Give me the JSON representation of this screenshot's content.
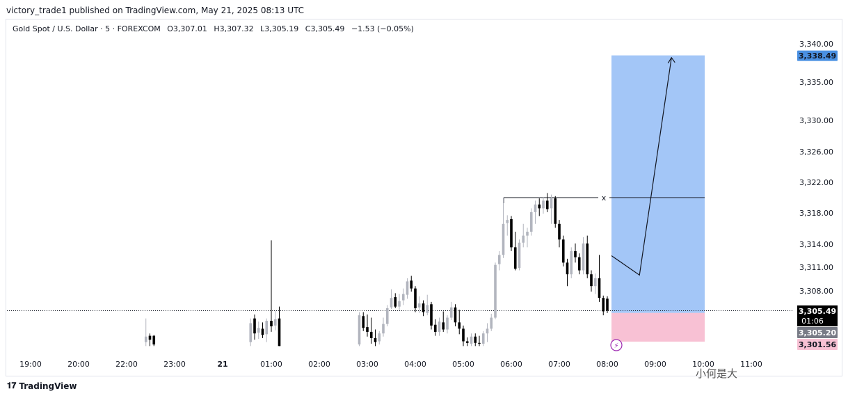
{
  "header": {
    "published_line": "victory_trade1 published on TradingView.com, May 21, 2025 08:13 UTC"
  },
  "legend": {
    "symbol": "Gold Spot / U.S. Dollar · 5 · FOREXCOM",
    "open": "O3,307.01",
    "high": "H3,307.32",
    "low": "L3,305.19",
    "close": "C3,305.49",
    "change": "−1.53 (−0.05%)"
  },
  "footer": {
    "brand": "TradingView",
    "watermark": "小何是大"
  },
  "colors": {
    "up": "#b2b5be",
    "down": "#000000",
    "target_zone": "#a3c6f7",
    "stop_zone": "#f8c1d4",
    "target_label": "#4a90e2",
    "stop_label": "#f8c1d4",
    "current_label": "#000000",
    "entry_label": "#787b86"
  },
  "chart_data": {
    "type": "candlestick",
    "title": "Gold Spot / U.S. Dollar · 5 · FOREXCOM",
    "y_ticks": [
      3308.0,
      3311.0,
      3314.0,
      3318.0,
      3322.0,
      3326.0,
      3330.0,
      3335.0,
      3340.0
    ],
    "y_tick_labels": [
      "3,308.00",
      "3,311.00",
      "3,314.00",
      "3,318.00",
      "3,322.00",
      "3,326.00",
      "3,330.00",
      "3,335.00",
      "3,340.00"
    ],
    "x_ticks": [
      "19:00",
      "20:00",
      "22:00",
      "23:00",
      "21",
      "01:00",
      "02:00",
      "03:00",
      "04:00",
      "05:00",
      "06:00",
      "07:00",
      "08:00",
      "09:00",
      "10:00",
      "11:00"
    ],
    "candles": [
      {
        "t": "22:25",
        "o": 3301.5,
        "h": 3304.5,
        "l": 3301.0,
        "c": 3302.2
      },
      {
        "t": "22:30",
        "o": 3302.3,
        "h": 3302.6,
        "l": 3301.0,
        "c": 3301.8
      },
      {
        "t": "22:35",
        "o": 3302.3,
        "h": 3302.4,
        "l": 3301.0,
        "c": 3301.2
      },
      {
        "t": "00:35",
        "o": 3301.5,
        "h": 3304.5,
        "l": 3301.0,
        "c": 3303.9
      },
      {
        "t": "00:40",
        "o": 3304.5,
        "h": 3305.0,
        "l": 3301.8,
        "c": 3302.6
      },
      {
        "t": "00:45",
        "o": 3302.7,
        "h": 3304.1,
        "l": 3301.9,
        "c": 3303.3
      },
      {
        "t": "00:50",
        "o": 3303.2,
        "h": 3304.0,
        "l": 3302.0,
        "c": 3302.4
      },
      {
        "t": "00:55",
        "o": 3302.5,
        "h": 3304.5,
        "l": 3301.5,
        "c": 3304.2
      },
      {
        "t": "01:00",
        "o": 3304.2,
        "h": 3314.5,
        "l": 3302.8,
        "c": 3303.5
      },
      {
        "t": "01:05",
        "o": 3303.6,
        "h": 3305.5,
        "l": 3303.0,
        "c": 3304.4
      },
      {
        "t": "01:10",
        "o": 3304.5,
        "h": 3306.0,
        "l": 3301.0,
        "c": 3301.0
      },
      {
        "t": "02:50",
        "o": 3301.2,
        "h": 3305.3,
        "l": 3301.0,
        "c": 3304.9
      },
      {
        "t": "02:55",
        "o": 3304.8,
        "h": 3305.3,
        "l": 3302.9,
        "c": 3303.3
      },
      {
        "t": "03:00",
        "o": 3303.4,
        "h": 3305.0,
        "l": 3302.2,
        "c": 3302.8
      },
      {
        "t": "03:05",
        "o": 3302.8,
        "h": 3304.6,
        "l": 3301.3,
        "c": 3302.0
      },
      {
        "t": "03:10",
        "o": 3302.0,
        "h": 3303.1,
        "l": 3301.0,
        "c": 3301.5
      },
      {
        "t": "03:15",
        "o": 3301.6,
        "h": 3302.9,
        "l": 3301.2,
        "c": 3302.6
      },
      {
        "t": "03:20",
        "o": 3302.6,
        "h": 3304.6,
        "l": 3302.2,
        "c": 3303.8
      },
      {
        "t": "03:25",
        "o": 3303.8,
        "h": 3306.2,
        "l": 3303.5,
        "c": 3305.8
      },
      {
        "t": "03:30",
        "o": 3305.9,
        "h": 3308.2,
        "l": 3305.7,
        "c": 3307.1
      },
      {
        "t": "03:35",
        "o": 3307.2,
        "h": 3307.7,
        "l": 3305.8,
        "c": 3306.0
      },
      {
        "t": "03:40",
        "o": 3306.0,
        "h": 3307.6,
        "l": 3305.6,
        "c": 3306.7
      },
      {
        "t": "03:45",
        "o": 3306.8,
        "h": 3308.3,
        "l": 3306.2,
        "c": 3307.6
      },
      {
        "t": "03:50",
        "o": 3307.5,
        "h": 3309.6,
        "l": 3307.0,
        "c": 3309.2
      },
      {
        "t": "03:55",
        "o": 3309.3,
        "h": 3309.9,
        "l": 3307.9,
        "c": 3308.3
      },
      {
        "t": "04:00",
        "o": 3308.3,
        "h": 3308.6,
        "l": 3305.3,
        "c": 3305.8
      },
      {
        "t": "04:05",
        "o": 3305.9,
        "h": 3307.3,
        "l": 3305.2,
        "c": 3306.4
      },
      {
        "t": "04:10",
        "o": 3306.4,
        "h": 3306.8,
        "l": 3304.8,
        "c": 3305.3
      },
      {
        "t": "04:15",
        "o": 3305.2,
        "h": 3307.5,
        "l": 3304.9,
        "c": 3306.2
      },
      {
        "t": "04:20",
        "o": 3306.3,
        "h": 3306.6,
        "l": 3303.1,
        "c": 3303.6
      },
      {
        "t": "04:25",
        "o": 3303.7,
        "h": 3304.4,
        "l": 3302.3,
        "c": 3302.8
      },
      {
        "t": "04:30",
        "o": 3302.8,
        "h": 3304.6,
        "l": 3302.3,
        "c": 3304.1
      },
      {
        "t": "04:35",
        "o": 3304.0,
        "h": 3305.4,
        "l": 3302.8,
        "c": 3303.1
      },
      {
        "t": "04:40",
        "o": 3303.1,
        "h": 3304.9,
        "l": 3302.6,
        "c": 3304.6
      },
      {
        "t": "04:45",
        "o": 3304.6,
        "h": 3306.6,
        "l": 3304.3,
        "c": 3305.9
      },
      {
        "t": "04:50",
        "o": 3305.9,
        "h": 3306.3,
        "l": 3303.5,
        "c": 3304.0
      },
      {
        "t": "04:55",
        "o": 3304.0,
        "h": 3305.6,
        "l": 3302.5,
        "c": 3303.2
      },
      {
        "t": "05:00",
        "o": 3303.2,
        "h": 3303.6,
        "l": 3301.0,
        "c": 3301.6
      },
      {
        "t": "05:05",
        "o": 3301.6,
        "h": 3302.1,
        "l": 3301.0,
        "c": 3301.4
      },
      {
        "t": "05:10",
        "o": 3301.3,
        "h": 3302.6,
        "l": 3301.0,
        "c": 3302.2
      },
      {
        "t": "05:15",
        "o": 3302.2,
        "h": 3302.6,
        "l": 3301.0,
        "c": 3301.4
      },
      {
        "t": "05:20",
        "o": 3301.4,
        "h": 3302.3,
        "l": 3301.0,
        "c": 3301.3
      },
      {
        "t": "05:25",
        "o": 3301.3,
        "h": 3302.9,
        "l": 3301.0,
        "c": 3302.6
      },
      {
        "t": "05:30",
        "o": 3302.6,
        "h": 3303.9,
        "l": 3301.5,
        "c": 3303.2
      },
      {
        "t": "05:35",
        "o": 3303.2,
        "h": 3305.1,
        "l": 3302.9,
        "c": 3304.6
      },
      {
        "t": "05:40",
        "o": 3304.6,
        "h": 3311.6,
        "l": 3304.4,
        "c": 3311.3
      },
      {
        "t": "05:45",
        "o": 3311.4,
        "h": 3313.1,
        "l": 3310.6,
        "c": 3312.6
      },
      {
        "t": "05:50",
        "o": 3312.6,
        "h": 3320.0,
        "l": 3312.2,
        "c": 3316.6
      },
      {
        "t": "05:55",
        "o": 3316.7,
        "h": 3317.7,
        "l": 3315.1,
        "c": 3317.1
      },
      {
        "t": "06:00",
        "o": 3317.2,
        "h": 3317.6,
        "l": 3313.1,
        "c": 3313.6
      },
      {
        "t": "06:05",
        "o": 3313.6,
        "h": 3315.6,
        "l": 3310.6,
        "c": 3310.8
      },
      {
        "t": "06:10",
        "o": 3310.9,
        "h": 3314.6,
        "l": 3310.6,
        "c": 3314.2
      },
      {
        "t": "06:15",
        "o": 3314.2,
        "h": 3316.6,
        "l": 3313.6,
        "c": 3315.1
      },
      {
        "t": "06:20",
        "o": 3315.1,
        "h": 3316.1,
        "l": 3313.6,
        "c": 3315.6
      },
      {
        "t": "06:25",
        "o": 3315.6,
        "h": 3318.6,
        "l": 3315.1,
        "c": 3318.1
      },
      {
        "t": "06:30",
        "o": 3318.1,
        "h": 3319.6,
        "l": 3316.6,
        "c": 3319.1
      },
      {
        "t": "06:35",
        "o": 3319.1,
        "h": 3319.9,
        "l": 3317.6,
        "c": 3318.6
      },
      {
        "t": "06:40",
        "o": 3318.6,
        "h": 3320.1,
        "l": 3317.9,
        "c": 3319.6
      },
      {
        "t": "06:45",
        "o": 3319.6,
        "h": 3320.6,
        "l": 3318.1,
        "c": 3318.5
      },
      {
        "t": "06:50",
        "o": 3318.6,
        "h": 3320.4,
        "l": 3316.6,
        "c": 3319.9
      },
      {
        "t": "06:55",
        "o": 3319.9,
        "h": 3320.2,
        "l": 3316.1,
        "c": 3316.6
      },
      {
        "t": "07:00",
        "o": 3316.6,
        "h": 3317.1,
        "l": 3313.6,
        "c": 3314.6
      },
      {
        "t": "07:05",
        "o": 3314.6,
        "h": 3315.1,
        "l": 3311.1,
        "c": 3311.6
      },
      {
        "t": "07:10",
        "o": 3311.6,
        "h": 3312.1,
        "l": 3308.6,
        "c": 3310.1
      },
      {
        "t": "07:15",
        "o": 3310.1,
        "h": 3313.6,
        "l": 3309.6,
        "c": 3313.1
      },
      {
        "t": "07:20",
        "o": 3313.1,
        "h": 3314.1,
        "l": 3311.6,
        "c": 3312.3
      },
      {
        "t": "07:25",
        "o": 3312.3,
        "h": 3312.8,
        "l": 3310.1,
        "c": 3310.6
      },
      {
        "t": "07:30",
        "o": 3310.6,
        "h": 3314.9,
        "l": 3310.1,
        "c": 3314.1
      },
      {
        "t": "07:35",
        "o": 3314.1,
        "h": 3315.1,
        "l": 3309.6,
        "c": 3310.1
      },
      {
        "t": "07:40",
        "o": 3310.1,
        "h": 3310.6,
        "l": 3307.9,
        "c": 3308.6
      },
      {
        "t": "07:45",
        "o": 3308.6,
        "h": 3310.2,
        "l": 3307.6,
        "c": 3309.6
      },
      {
        "t": "07:50",
        "o": 3309.6,
        "h": 3312.6,
        "l": 3306.6,
        "c": 3307.1
      },
      {
        "t": "07:55",
        "o": 3307.1,
        "h": 3307.4,
        "l": 3304.9,
        "c": 3305.4
      },
      {
        "t": "08:00",
        "o": 3307.01,
        "h": 3307.32,
        "l": 3305.19,
        "c": 3305.49
      }
    ],
    "annotations": {
      "resistance_level": 3320.0,
      "resistance_marker": "x",
      "entry": 3305.2,
      "target": 3338.49,
      "stop": 3301.56,
      "projection_path": [
        {
          "t": "08:00",
          "price": 3312.5
        },
        {
          "t": "08:35",
          "price": 3310.0
        },
        {
          "t": "09:15",
          "price": 3338.2
        }
      ]
    },
    "price_labels": {
      "target": "3,338.49",
      "current": "3,305.49",
      "countdown": "01:06",
      "entry": "3,305.20",
      "stop": "3,301.56"
    }
  }
}
